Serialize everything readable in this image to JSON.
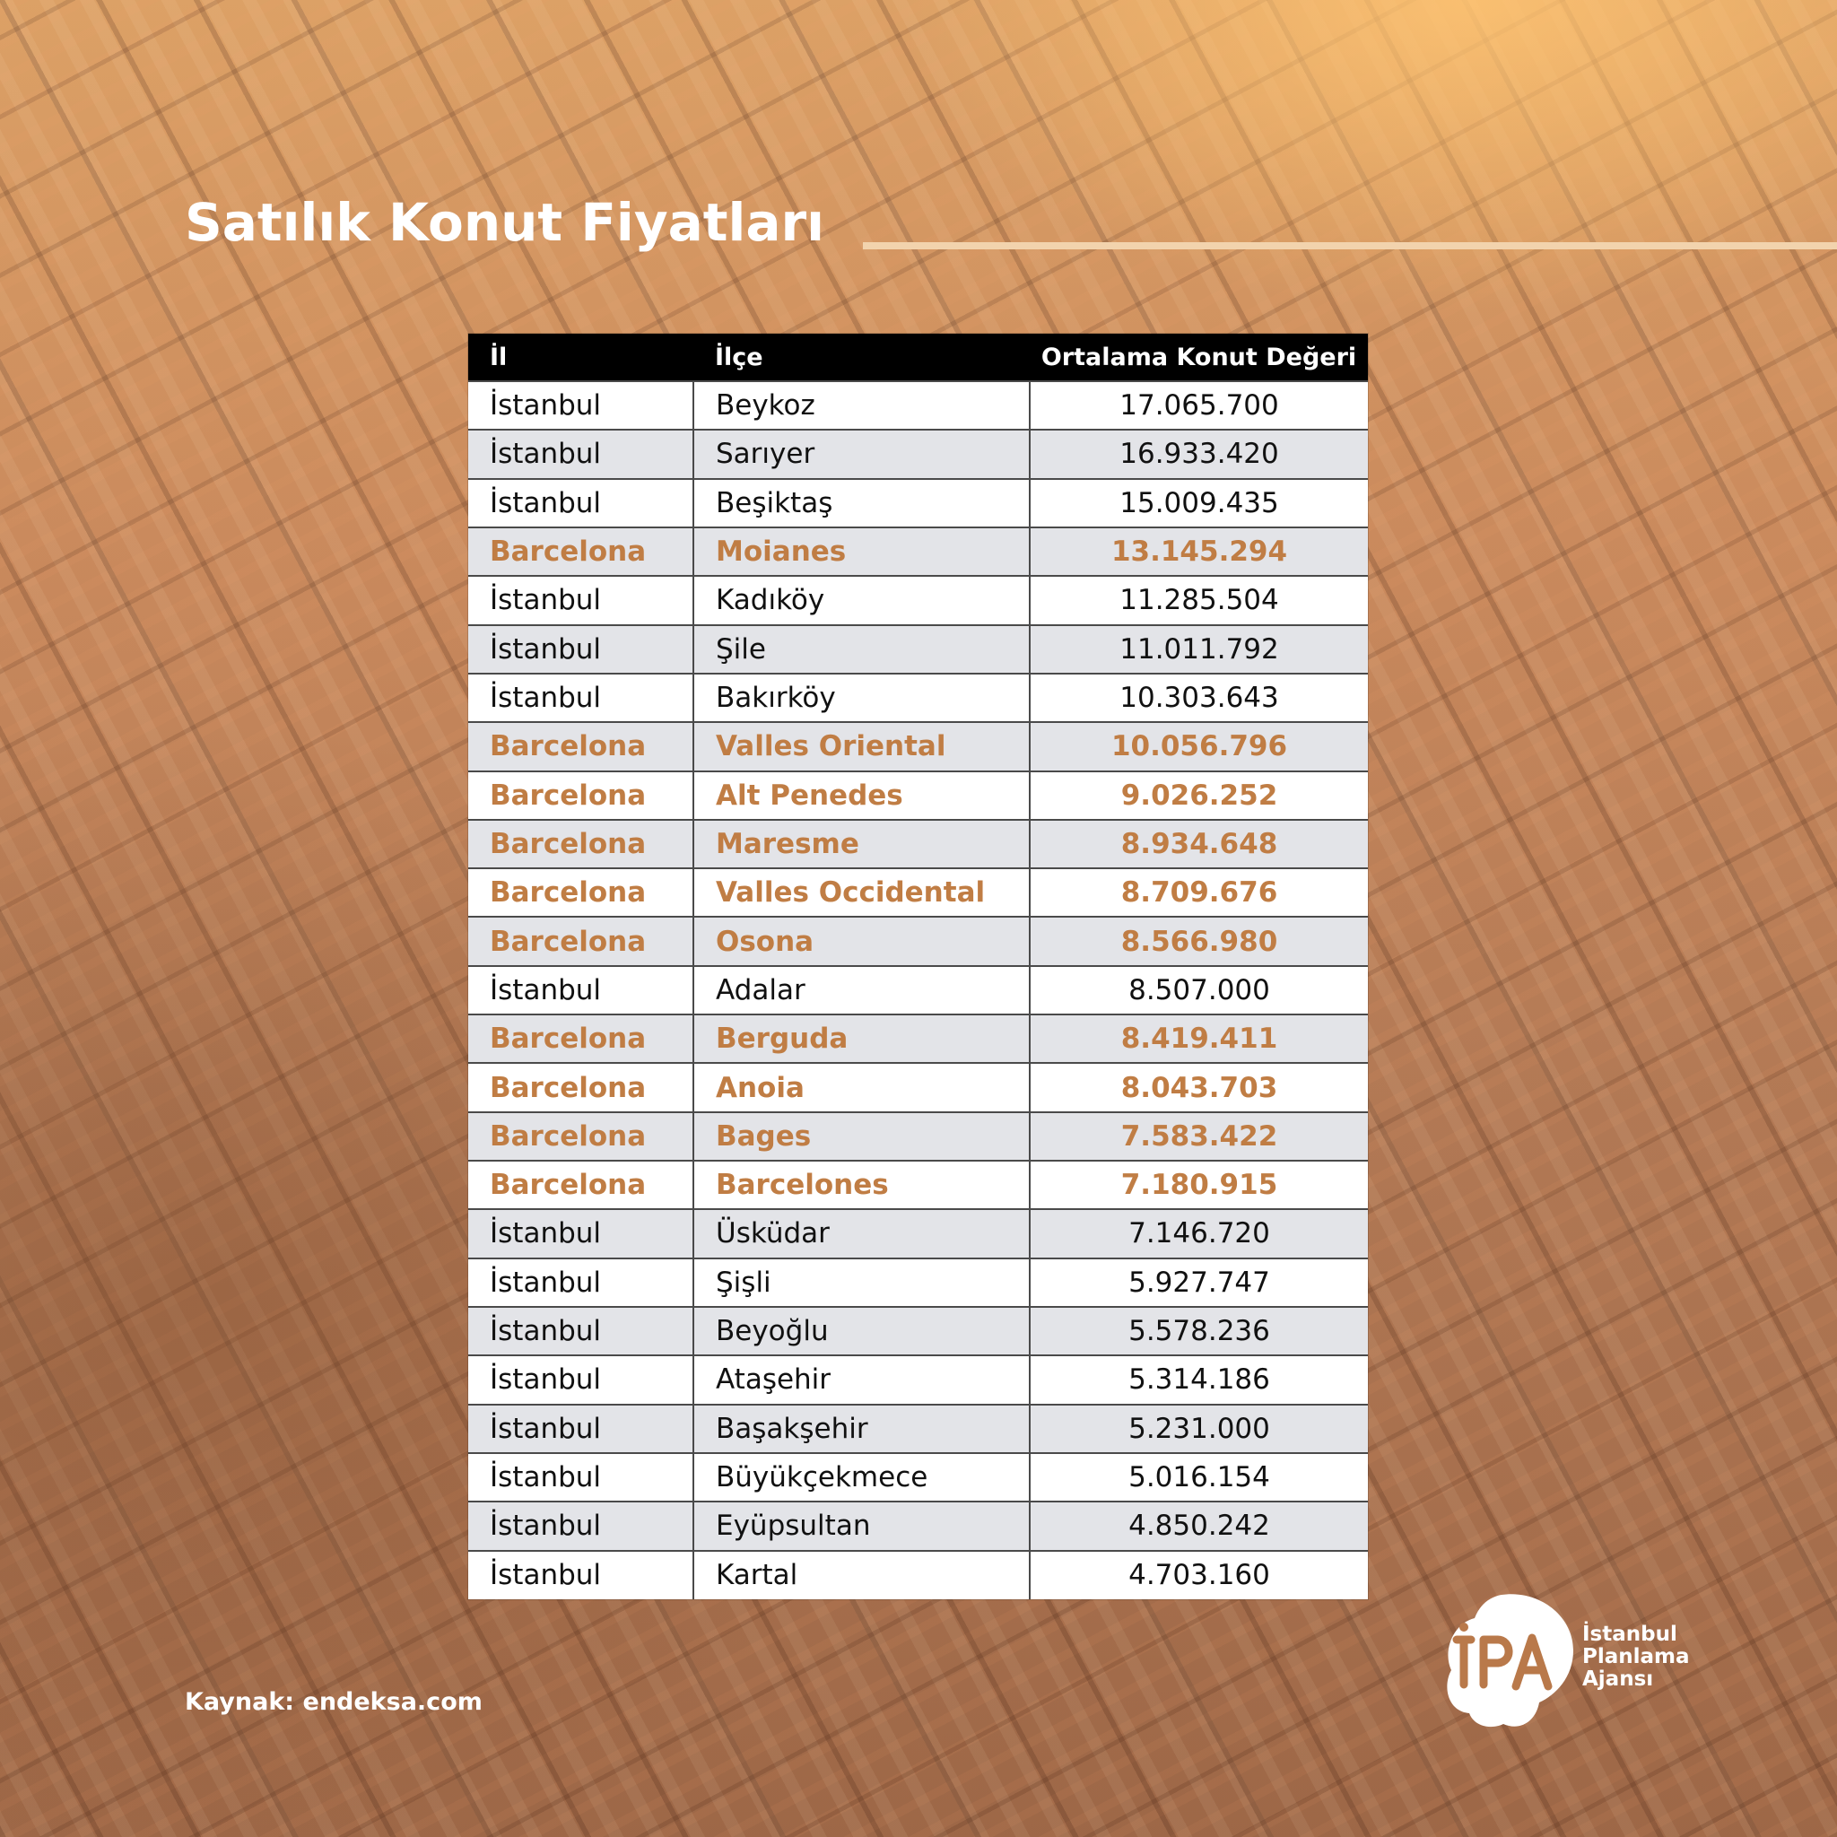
{
  "title": "Satılık Konut Fiyatları",
  "table": {
    "headers": [
      "İl",
      "İlçe",
      "Ortalama Konut Değeri"
    ],
    "rows": [
      {
        "il": "İstanbul",
        "ilce": "Beykoz",
        "deger": "17.065.700",
        "highlight": false
      },
      {
        "il": "İstanbul",
        "ilce": "Sarıyer",
        "deger": "16.933.420",
        "highlight": false
      },
      {
        "il": "İstanbul",
        "ilce": "Beşiktaş",
        "deger": "15.009.435",
        "highlight": false
      },
      {
        "il": "Barcelona",
        "ilce": "Moianes",
        "deger": "13.145.294",
        "highlight": true
      },
      {
        "il": "İstanbul",
        "ilce": "Kadıköy",
        "deger": "11.285.504",
        "highlight": false
      },
      {
        "il": "İstanbul",
        "ilce": "Şile",
        "deger": "11.011.792",
        "highlight": false
      },
      {
        "il": "İstanbul",
        "ilce": "Bakırköy",
        "deger": "10.303.643",
        "highlight": false
      },
      {
        "il": "Barcelona",
        "ilce": "Valles Oriental",
        "deger": "10.056.796",
        "highlight": true
      },
      {
        "il": "Barcelona",
        "ilce": "Alt Penedes",
        "deger": "9.026.252",
        "highlight": true
      },
      {
        "il": "Barcelona",
        "ilce": "Maresme",
        "deger": "8.934.648",
        "highlight": true
      },
      {
        "il": "Barcelona",
        "ilce": "Valles Occidental",
        "deger": "8.709.676",
        "highlight": true
      },
      {
        "il": "Barcelona",
        "ilce": "Osona",
        "deger": "8.566.980",
        "highlight": true
      },
      {
        "il": "İstanbul",
        "ilce": "Adalar",
        "deger": "8.507.000",
        "highlight": false
      },
      {
        "il": "Barcelona",
        "ilce": "Berguda",
        "deger": "8.419.411",
        "highlight": true
      },
      {
        "il": "Barcelona",
        "ilce": "Anoia",
        "deger": "8.043.703",
        "highlight": true
      },
      {
        "il": "Barcelona",
        "ilce": "Bages",
        "deger": "7.583.422",
        "highlight": true
      },
      {
        "il": "Barcelona",
        "ilce": "Barcelones",
        "deger": "7.180.915",
        "highlight": true
      },
      {
        "il": "İstanbul",
        "ilce": "Üsküdar",
        "deger": "7.146.720",
        "highlight": false
      },
      {
        "il": "İstanbul",
        "ilce": "Şişli",
        "deger": "5.927.747",
        "highlight": false
      },
      {
        "il": "İstanbul",
        "ilce": "Beyoğlu",
        "deger": "5.578.236",
        "highlight": false
      },
      {
        "il": "İstanbul",
        "ilce": "Ataşehir",
        "deger": "5.314.186",
        "highlight": false
      },
      {
        "il": "İstanbul",
        "ilce": "Başakşehir",
        "deger": "5.231.000",
        "highlight": false
      },
      {
        "il": "İstanbul",
        "ilce": "Büyükçekmece",
        "deger": "5.016.154",
        "highlight": false
      },
      {
        "il": "İstanbul",
        "ilce": "Eyüpsultan",
        "deger": "4.850.242",
        "highlight": false
      },
      {
        "il": "İstanbul",
        "ilce": "Kartal",
        "deger": "4.703.160",
        "highlight": false
      }
    ]
  },
  "source": "Kaynak: endeksa.com",
  "logo": {
    "mark_text": "İPA",
    "lines": [
      "İstanbul",
      "Planlama",
      "Ajansı"
    ]
  },
  "colors": {
    "highlight_text": "#c07d44",
    "header_bg": "#000000",
    "row_alt_bg": "#e3e4e8",
    "title_rule": "#f2d3ad"
  }
}
